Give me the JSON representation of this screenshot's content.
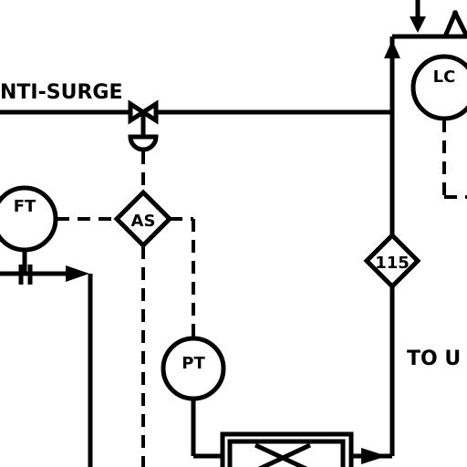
{
  "labels": {
    "anti_surge": "NTI-SURGE",
    "to_u": "TO U"
  },
  "instruments": {
    "ft": "FT",
    "lc": "LC",
    "pt": "PT",
    "as": "AS",
    "tag_115": "115"
  },
  "colors": {
    "line": "#000000",
    "background": "#ffffff"
  }
}
